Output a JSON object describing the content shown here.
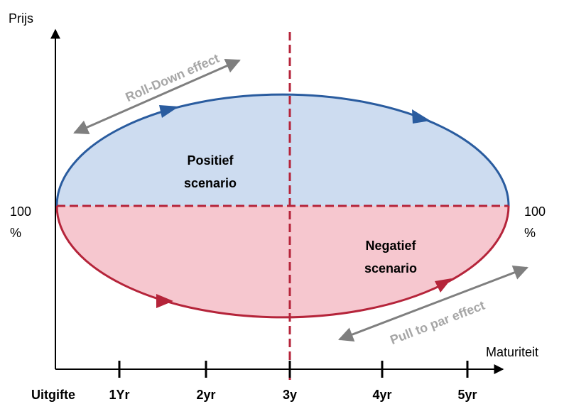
{
  "axes": {
    "y_label": "Prijs",
    "x_label": "Maturiteit",
    "x_ticks": [
      "Uitgifte",
      "1Yr",
      "2yr",
      "3y",
      "4yr",
      "5yr"
    ]
  },
  "par_left": [
    "100",
    "%"
  ],
  "par_right": [
    "100",
    "%"
  ],
  "positive": [
    "Positief",
    "scenario"
  ],
  "negative": [
    "Negatief",
    "scenario"
  ],
  "roll_down": "Roll-Down effect",
  "pull_to_par": "Pull to par effect"
}
